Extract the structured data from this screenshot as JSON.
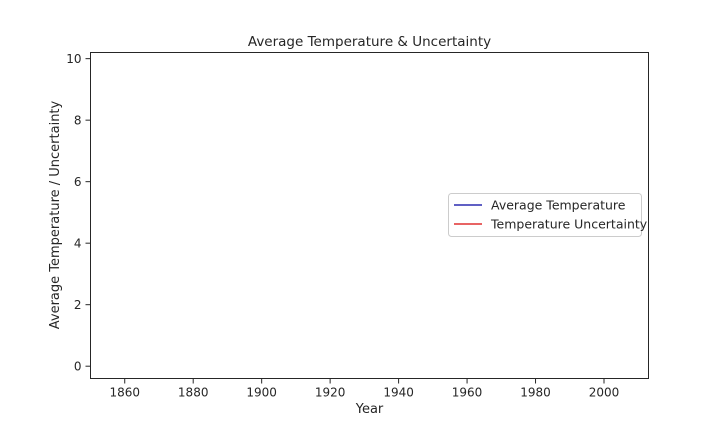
{
  "chart_data": {
    "type": "line",
    "title": "Average Temperature & Uncertainty",
    "xlabel": "Year",
    "ylabel": "Average Temperature / Uncertainty",
    "xlim": [
      1850,
      2013
    ],
    "ylim": [
      -0.4,
      10.2
    ],
    "x_ticks": [
      1860,
      1880,
      1900,
      1920,
      1940,
      1960,
      1980,
      2000
    ],
    "y_ticks": [
      0,
      2,
      4,
      6,
      8,
      10
    ],
    "grid": false,
    "legend_position": "center-right",
    "series": [
      {
        "name": "Average Temperature",
        "color": "#2b2bb0",
        "x": [],
        "y": []
      },
      {
        "name": "Temperature Uncertainty",
        "color": "#e03030",
        "x": [],
        "y": []
      }
    ]
  }
}
